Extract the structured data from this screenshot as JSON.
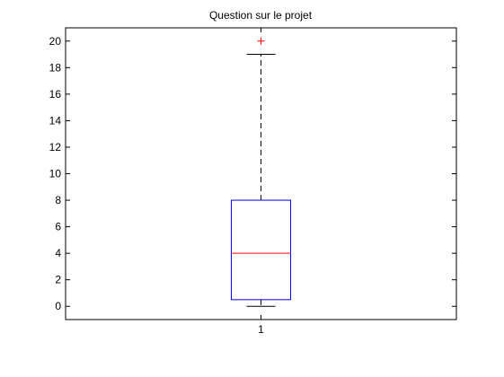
{
  "chart_data": {
    "type": "box",
    "title": "Question sur le projet",
    "xlabel": "",
    "ylabel": "",
    "categories": [
      "1"
    ],
    "ylim": [
      -1,
      21
    ],
    "yticks": [
      0,
      2,
      4,
      6,
      8,
      10,
      12,
      14,
      16,
      18,
      20
    ],
    "boxes": [
      {
        "category": "1",
        "whisker_low": 0,
        "q1": 0.5,
        "median": 4,
        "q3": 8,
        "whisker_high": 19,
        "outliers": [
          20
        ]
      }
    ],
    "grid": false,
    "legend": "none",
    "colors": {
      "box": "#0000ff",
      "median": "#ff0000",
      "whisker": "#000000",
      "outlier": "#ff0000",
      "axes": "#000000"
    }
  }
}
